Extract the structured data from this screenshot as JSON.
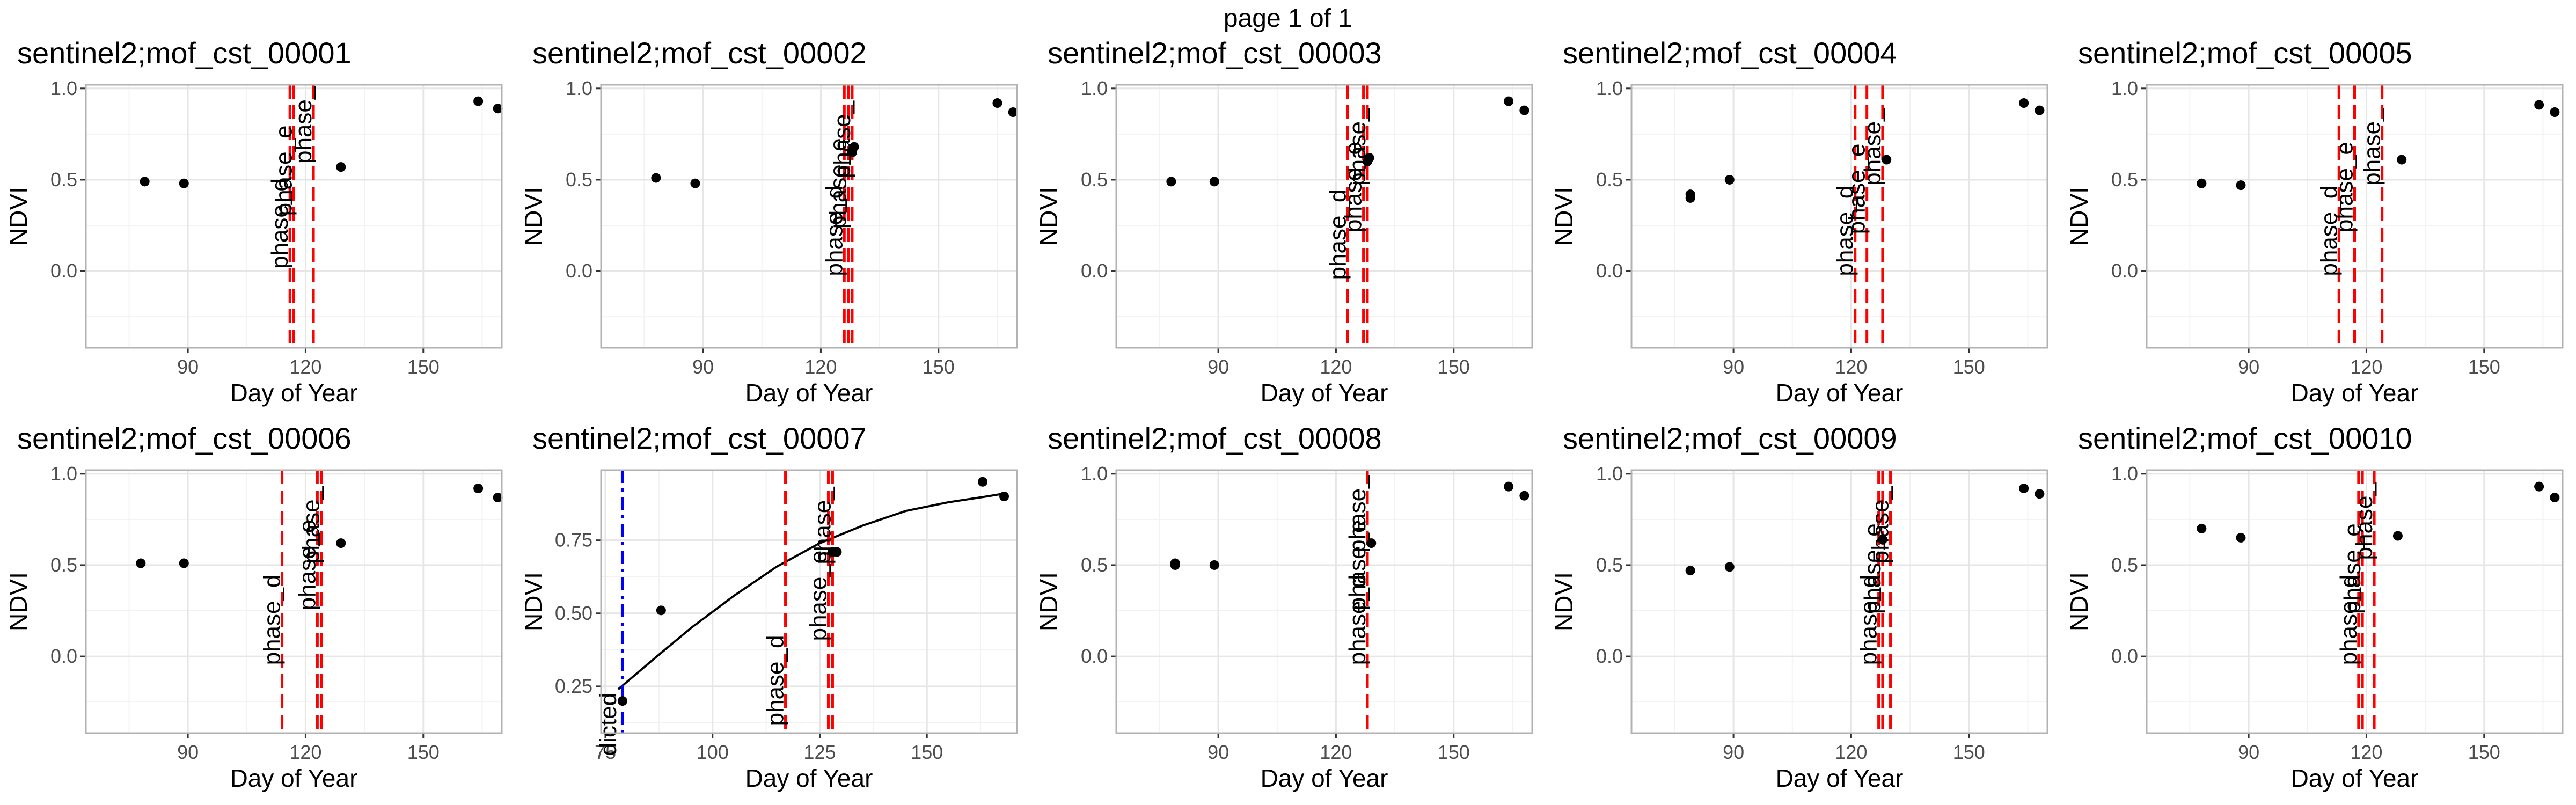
{
  "page_label": "page 1 of 1",
  "chart_data": [
    {
      "type": "scatter",
      "title": "sentinel2;mof_cst_00001",
      "xlabel": "Day of Year",
      "ylabel": "NDVI",
      "xlim": [
        64,
        170
      ],
      "ylim": [
        -0.42,
        1.02
      ],
      "xticks": [
        90,
        120,
        150
      ],
      "xtick_labels": [
        "90",
        "120",
        "150"
      ],
      "yticks": [
        0.0,
        0.5,
        1.0
      ],
      "ytick_labels": [
        "0.0",
        "0.5",
        "1.0"
      ],
      "points": [
        [
          79,
          0.49
        ],
        [
          89,
          0.48
        ],
        [
          129,
          0.57
        ],
        [
          164,
          0.93
        ],
        [
          169,
          0.89
        ]
      ],
      "vlines": [
        {
          "x": 116,
          "label": "phase_d",
          "label_y": 0.26
        },
        {
          "x": 117,
          "label": "phase_e",
          "label_y": 0.55
        },
        {
          "x": 122,
          "label": "phase_",
          "label_y": 0.8
        }
      ]
    },
    {
      "type": "scatter",
      "title": "sentinel2;mof_cst_00002",
      "xlabel": "Day of Year",
      "ylabel": "NDVI",
      "xlim": [
        64,
        170
      ],
      "ylim": [
        -0.42,
        1.02
      ],
      "xticks": [
        90,
        120,
        150
      ],
      "xtick_labels": [
        "90",
        "120",
        "150"
      ],
      "yticks": [
        0.0,
        0.5,
        1.0
      ],
      "ytick_labels": [
        "0.0",
        "0.5",
        "1.0"
      ],
      "points": [
        [
          78,
          0.51
        ],
        [
          88,
          0.48
        ],
        [
          128,
          0.65
        ],
        [
          128.5,
          0.68
        ],
        [
          165,
          0.92
        ],
        [
          169,
          0.87
        ]
      ],
      "vlines": [
        {
          "x": 126,
          "label": "phase_d",
          "label_y": 0.22
        },
        {
          "x": 127,
          "label": "phase_e",
          "label_y": 0.48
        },
        {
          "x": 128,
          "label": "phase_",
          "label_y": 0.72
        }
      ]
    },
    {
      "type": "scatter",
      "title": "sentinel2;mof_cst_00003",
      "xlabel": "Day of Year",
      "ylabel": "NDVI",
      "xlim": [
        64,
        170
      ],
      "ylim": [
        -0.42,
        1.02
      ],
      "xticks": [
        90,
        120,
        150
      ],
      "xtick_labels": [
        "90",
        "120",
        "150"
      ],
      "yticks": [
        0.0,
        0.5,
        1.0
      ],
      "ytick_labels": [
        "0.0",
        "0.5",
        "1.0"
      ],
      "points": [
        [
          78,
          0.49
        ],
        [
          89,
          0.49
        ],
        [
          128,
          0.6
        ],
        [
          128.5,
          0.62
        ],
        [
          164,
          0.93
        ],
        [
          168,
          0.88
        ]
      ],
      "vlines": [
        {
          "x": 123,
          "label": "phase_d",
          "label_y": 0.2
        },
        {
          "x": 127,
          "label": "phase_e",
          "label_y": 0.46
        },
        {
          "x": 128,
          "label": "phase_",
          "label_y": 0.68
        }
      ]
    },
    {
      "type": "scatter",
      "title": "sentinel2;mof_cst_00004",
      "xlabel": "Day of Year",
      "ylabel": "NDVI",
      "xlim": [
        64,
        170
      ],
      "ylim": [
        -0.42,
        1.02
      ],
      "xticks": [
        90,
        120,
        150
      ],
      "xtick_labels": [
        "90",
        "120",
        "150"
      ],
      "yticks": [
        0.0,
        0.5,
        1.0
      ],
      "ytick_labels": [
        "0.0",
        "0.5",
        "1.0"
      ],
      "points": [
        [
          79,
          0.4
        ],
        [
          79,
          0.42
        ],
        [
          89,
          0.5
        ],
        [
          129,
          0.61
        ],
        [
          164,
          0.92
        ],
        [
          168,
          0.88
        ]
      ],
      "vlines": [
        {
          "x": 121,
          "label": "phase_d",
          "label_y": 0.22
        },
        {
          "x": 124,
          "label": "phase_e",
          "label_y": 0.45
        },
        {
          "x": 128,
          "label": "phase_",
          "label_y": 0.68
        }
      ]
    },
    {
      "type": "scatter",
      "title": "sentinel2;mof_cst_00005",
      "xlabel": "Day of Year",
      "ylabel": "NDVI",
      "xlim": [
        64,
        170
      ],
      "ylim": [
        -0.42,
        1.02
      ],
      "xticks": [
        90,
        120,
        150
      ],
      "xtick_labels": [
        "90",
        "120",
        "150"
      ],
      "yticks": [
        0.0,
        0.5,
        1.0
      ],
      "ytick_labels": [
        "0.0",
        "0.5",
        "1.0"
      ],
      "points": [
        [
          78,
          0.48
        ],
        [
          88,
          0.47
        ],
        [
          129,
          0.61
        ],
        [
          164,
          0.91
        ],
        [
          168,
          0.87
        ]
      ],
      "vlines": [
        {
          "x": 113,
          "label": "phase_d",
          "label_y": 0.22
        },
        {
          "x": 117,
          "label": "phase_e",
          "label_y": 0.46
        },
        {
          "x": 124,
          "label": "phase_",
          "label_y": 0.68
        }
      ]
    },
    {
      "type": "scatter",
      "title": "sentinel2;mof_cst_00006",
      "xlabel": "Day of Year",
      "ylabel": "NDVI",
      "xlim": [
        64,
        170
      ],
      "ylim": [
        -0.42,
        1.02
      ],
      "xticks": [
        90,
        120,
        150
      ],
      "xtick_labels": [
        "90",
        "120",
        "150"
      ],
      "yticks": [
        0.0,
        0.5,
        1.0
      ],
      "ytick_labels": [
        "0.0",
        "0.5",
        "1.0"
      ],
      "points": [
        [
          78,
          0.51
        ],
        [
          89,
          0.51
        ],
        [
          129,
          0.62
        ],
        [
          164,
          0.92
        ],
        [
          169,
          0.87
        ]
      ],
      "vlines": [
        {
          "x": 114,
          "label": "phase_d",
          "label_y": 0.2
        },
        {
          "x": 123,
          "label": "phase_e",
          "label_y": 0.5
        },
        {
          "x": 124,
          "label": "phase_",
          "label_y": 0.72
        }
      ]
    },
    {
      "type": "scatter",
      "title": "sentinel2;mof_cst_00007",
      "xlabel": "Day of Year",
      "ylabel": "NDVI",
      "xlim": [
        74,
        171
      ],
      "ylim": [
        0.09,
        0.99
      ],
      "xticks": [
        75,
        100,
        125,
        150
      ],
      "xtick_labels": [
        "75",
        "100",
        "125",
        "150"
      ],
      "yticks": [
        0.25,
        0.5,
        0.75
      ],
      "ytick_labels": [
        "0.25",
        "0.50",
        "0.75"
      ],
      "points": [
        [
          79,
          0.2
        ],
        [
          88,
          0.51
        ],
        [
          128,
          0.71
        ],
        [
          129,
          0.71
        ],
        [
          163,
          0.95
        ],
        [
          168,
          0.9
        ]
      ],
      "curve": [
        [
          78,
          0.24
        ],
        [
          86,
          0.34
        ],
        [
          95,
          0.45
        ],
        [
          105,
          0.56
        ],
        [
          115,
          0.66
        ],
        [
          125,
          0.74
        ],
        [
          135,
          0.8
        ],
        [
          145,
          0.85
        ],
        [
          155,
          0.88
        ],
        [
          164,
          0.9
        ],
        [
          168,
          0.91
        ]
      ],
      "vlines": [
        {
          "x": 117,
          "label": "phase_d",
          "label_y": 0.27
        },
        {
          "x": 127,
          "label": "phase_e",
          "label_y": 0.56
        },
        {
          "x": 128,
          "label": "phase_",
          "label_y": 0.8
        }
      ],
      "predicted_line": {
        "x": 79,
        "label": "dicted",
        "label_y": 0.12
      }
    },
    {
      "type": "scatter",
      "title": "sentinel2;mof_cst_00008",
      "xlabel": "Day of Year",
      "ylabel": "NDVI",
      "xlim": [
        64,
        170
      ],
      "ylim": [
        -0.42,
        1.02
      ],
      "xticks": [
        90,
        120,
        150
      ],
      "xtick_labels": [
        "90",
        "120",
        "150"
      ],
      "yticks": [
        0.0,
        0.5,
        1.0
      ],
      "ytick_labels": [
        "0.0",
        "0.5",
        "1.0"
      ],
      "points": [
        [
          79,
          0.51
        ],
        [
          79,
          0.5
        ],
        [
          89,
          0.5
        ],
        [
          129,
          0.62
        ],
        [
          164,
          0.93
        ],
        [
          168,
          0.88
        ]
      ],
      "vlines": [
        {
          "x": 128,
          "label": "phase_d",
          "label_y": 0.2
        },
        {
          "x": 128,
          "label": "phase_e",
          "label_y": 0.5
        },
        {
          "x": 128,
          "label": "phase_",
          "label_y": 0.78
        }
      ]
    },
    {
      "type": "scatter",
      "title": "sentinel2;mof_cst_00009",
      "xlabel": "Day of Year",
      "ylabel": "NDVI",
      "xlim": [
        64,
        170
      ],
      "ylim": [
        -0.42,
        1.02
      ],
      "xticks": [
        90,
        120,
        150
      ],
      "xtick_labels": [
        "90",
        "120",
        "150"
      ],
      "yticks": [
        0.0,
        0.5,
        1.0
      ],
      "ytick_labels": [
        "0.0",
        "0.5",
        "1.0"
      ],
      "points": [
        [
          79,
          0.47
        ],
        [
          89,
          0.49
        ],
        [
          128,
          0.64
        ],
        [
          164,
          0.92
        ],
        [
          168,
          0.89
        ]
      ],
      "vlines": [
        {
          "x": 127,
          "label": "phase_d",
          "label_y": 0.2
        },
        {
          "x": 128,
          "label": "phase_e",
          "label_y": 0.48
        },
        {
          "x": 130,
          "label": "phase_",
          "label_y": 0.72
        }
      ]
    },
    {
      "type": "scatter",
      "title": "sentinel2;mof_cst_00010",
      "xlabel": "Day of Year",
      "ylabel": "NDVI",
      "xlim": [
        64,
        170
      ],
      "ylim": [
        -0.42,
        1.02
      ],
      "xticks": [
        90,
        120,
        150
      ],
      "xtick_labels": [
        "90",
        "120",
        "150"
      ],
      "yticks": [
        0.0,
        0.5,
        1.0
      ],
      "ytick_labels": [
        "0.0",
        "0.5",
        "1.0"
      ],
      "points": [
        [
          78,
          0.7
        ],
        [
          88,
          0.65
        ],
        [
          128,
          0.66
        ],
        [
          164,
          0.93
        ],
        [
          168,
          0.87
        ]
      ],
      "vlines": [
        {
          "x": 118,
          "label": "phase_d",
          "label_y": 0.2
        },
        {
          "x": 119,
          "label": "phase_e",
          "label_y": 0.48
        },
        {
          "x": 122,
          "label": "phase_",
          "label_y": 0.74
        }
      ]
    }
  ]
}
